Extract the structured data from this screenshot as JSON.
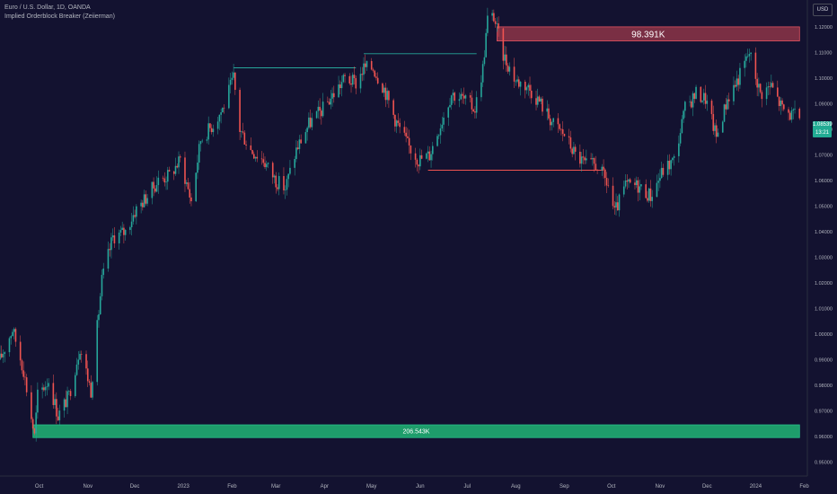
{
  "header": {
    "symbol_line": "Euro / U.S. Dollar, 1D, OANDA",
    "indicator_line": "Implied Orderblock Breaker (Zeiierman)"
  },
  "currency_button": "USD",
  "last_price": {
    "price": "1.08539",
    "countdown": "13:21"
  },
  "colors": {
    "background": "#131230",
    "up_candle": "#26a69a",
    "down_candle": "#ef5350",
    "bull_zone": "#1e9d6b",
    "bear_zone": "#7a2f44",
    "bull_line": "#26a69a",
    "bear_line": "#ef5350",
    "axis_text": "#b2b5be"
  },
  "chart_data": {
    "type": "candlestick",
    "title": "",
    "xlabel": "",
    "ylabel": "",
    "ylim": [
      0.9445,
      1.1305
    ],
    "price_ticks": [
      "1.12000",
      "1.11000",
      "1.10000",
      "1.09000",
      "1.08000",
      "1.07000",
      "1.06000",
      "1.05000",
      "1.04000",
      "1.03000",
      "1.02000",
      "1.01000",
      "1.00000",
      "0.99000",
      "0.98000",
      "0.97000",
      "0.96000",
      "0.95000"
    ],
    "x_ticks": [
      {
        "label": "Oct",
        "date": "2022-10-01"
      },
      {
        "label": "Nov",
        "date": "2022-11-01"
      },
      {
        "label": "Dec",
        "date": "2022-12-01"
      },
      {
        "label": "2023",
        "date": "2023-01-01"
      },
      {
        "label": "Feb",
        "date": "2023-02-01"
      },
      {
        "label": "Mar",
        "date": "2023-03-01"
      },
      {
        "label": "Apr",
        "date": "2023-04-01"
      },
      {
        "label": "May",
        "date": "2023-05-01"
      },
      {
        "label": "Jun",
        "date": "2023-06-01"
      },
      {
        "label": "Jul",
        "date": "2023-07-01"
      },
      {
        "label": "Aug",
        "date": "2023-08-01"
      },
      {
        "label": "Sep",
        "date": "2023-09-01"
      },
      {
        "label": "Oct",
        "date": "2023-10-01"
      },
      {
        "label": "Nov",
        "date": "2023-11-01"
      },
      {
        "label": "Dec",
        "date": "2023-12-01"
      },
      {
        "label": "2024",
        "date": "2024-01-01"
      },
      {
        "label": "Feb",
        "date": "2024-02-01"
      }
    ],
    "x_range": [
      "2022-09-06",
      "2024-02-03"
    ],
    "close_path": [
      [
        "2022-09-06",
        0.99
      ],
      [
        "2022-09-14",
        1.002
      ],
      [
        "2022-09-21",
        0.986
      ],
      [
        "2022-09-28",
        0.96
      ],
      [
        "2022-09-30",
        0.976
      ],
      [
        "2022-10-07",
        0.982
      ],
      [
        "2022-10-13",
        0.968
      ],
      [
        "2022-10-20",
        0.976
      ],
      [
        "2022-10-27",
        0.995
      ],
      [
        "2022-11-03",
        0.978
      ],
      [
        "2022-11-10",
        1.021
      ],
      [
        "2022-11-17",
        1.038
      ],
      [
        "2022-11-25",
        1.04
      ],
      [
        "2022-12-01",
        1.048
      ],
      [
        "2022-12-09",
        1.054
      ],
      [
        "2022-12-16",
        1.06
      ],
      [
        "2022-12-23",
        1.062
      ],
      [
        "2022-12-30",
        1.068
      ],
      [
        "2023-01-06",
        1.052
      ],
      [
        "2023-01-12",
        1.076
      ],
      [
        "2023-01-20",
        1.082
      ],
      [
        "2023-01-26",
        1.088
      ],
      [
        "2023-02-02",
        1.1
      ],
      [
        "2023-02-06",
        1.08
      ],
      [
        "2023-02-13",
        1.072
      ],
      [
        "2023-02-21",
        1.068
      ],
      [
        "2023-03-01",
        1.06
      ],
      [
        "2023-03-07",
        1.057
      ],
      [
        "2023-03-14",
        1.072
      ],
      [
        "2023-03-22",
        1.082
      ],
      [
        "2023-03-31",
        1.088
      ],
      [
        "2023-04-07",
        1.094
      ],
      [
        "2023-04-14",
        1.1
      ],
      [
        "2023-04-21",
        1.098
      ],
      [
        "2023-04-26",
        1.104
      ],
      [
        "2023-05-02",
        1.104
      ],
      [
        "2023-05-09",
        1.096
      ],
      [
        "2023-05-16",
        1.084
      ],
      [
        "2023-05-24",
        1.074
      ],
      [
        "2023-05-31",
        1.068
      ],
      [
        "2023-06-07",
        1.07
      ],
      [
        "2023-06-14",
        1.082
      ],
      [
        "2023-06-21",
        1.094
      ],
      [
        "2023-06-28",
        1.092
      ],
      [
        "2023-07-06",
        1.088
      ],
      [
        "2023-07-11",
        1.104
      ],
      [
        "2023-07-14",
        1.123
      ],
      [
        "2023-07-18",
        1.124
      ],
      [
        "2023-07-24",
        1.109
      ],
      [
        "2023-08-01",
        1.099
      ],
      [
        "2023-08-08",
        1.097
      ],
      [
        "2023-08-16",
        1.091
      ],
      [
        "2023-08-25",
        1.082
      ],
      [
        "2023-09-01",
        1.078
      ],
      [
        "2023-09-08",
        1.07
      ],
      [
        "2023-09-15",
        1.066
      ],
      [
        "2023-09-22",
        1.066
      ],
      [
        "2023-09-29",
        1.058
      ],
      [
        "2023-10-03",
        1.047
      ],
      [
        "2023-10-10",
        1.058
      ],
      [
        "2023-10-18",
        1.058
      ],
      [
        "2023-10-26",
        1.054
      ],
      [
        "2023-11-03",
        1.064
      ],
      [
        "2023-11-10",
        1.068
      ],
      [
        "2023-11-17",
        1.088
      ],
      [
        "2023-11-24",
        1.094
      ],
      [
        "2023-11-30",
        1.092
      ],
      [
        "2023-12-07",
        1.077
      ],
      [
        "2023-12-14",
        1.092
      ],
      [
        "2023-12-21",
        1.1
      ],
      [
        "2023-12-28",
        1.11
      ],
      [
        "2024-01-04",
        1.094
      ],
      [
        "2024-01-11",
        1.097
      ],
      [
        "2024-01-18",
        1.088
      ],
      [
        "2024-01-25",
        1.085
      ],
      [
        "2024-01-29",
        1.0854
      ]
    ],
    "zones": [
      {
        "kind": "bearish",
        "label": "98.391K",
        "top": 1.12,
        "bottom": 1.1145,
        "start": "2023-07-20",
        "end": "2024-01-29"
      },
      {
        "kind": "bullish",
        "label": "206.543K",
        "top": 0.9645,
        "bottom": 0.9595,
        "start": "2022-09-27",
        "end": "2024-01-29"
      }
    ],
    "levels": [
      {
        "kind": "bullish",
        "price": 1.104,
        "start": "2023-02-02",
        "end": "2023-04-21"
      },
      {
        "kind": "bullish",
        "price": 1.1095,
        "start": "2023-04-26",
        "end": "2023-07-07"
      },
      {
        "kind": "bearish",
        "price": 1.064,
        "start": "2023-06-06",
        "end": "2023-09-26"
      }
    ]
  }
}
